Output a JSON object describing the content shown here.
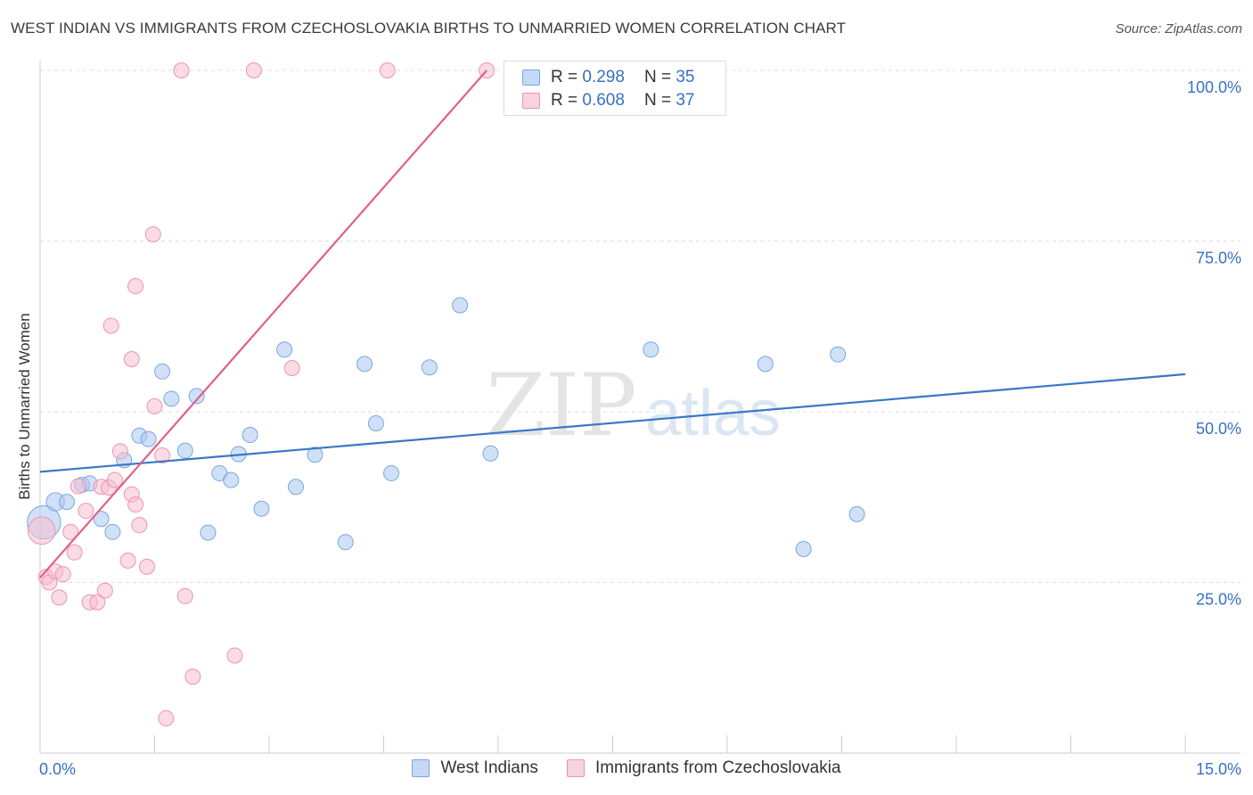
{
  "header": {
    "title": "WEST INDIAN VS IMMIGRANTS FROM CZECHOSLOVAKIA BIRTHS TO UNMARRIED WOMEN CORRELATION CHART",
    "source": "Source: ZipAtlas.com"
  },
  "watermark": {
    "zip": "ZIP",
    "atlas": "atlas"
  },
  "legend": {
    "rows": [
      {
        "r_label": "R =",
        "r_value": "0.298",
        "n_label": "N =",
        "n_value": "35"
      },
      {
        "r_label": "R =",
        "r_value": "0.608",
        "n_label": "N =",
        "n_value": "37"
      }
    ]
  },
  "colors": {
    "blue_fill": "#a9c8f0",
    "blue_stroke": "#7aa6e0",
    "blue_line": "#3a77c8",
    "pink_fill": "#f7bfd0",
    "pink_stroke": "#ec93b0",
    "pink_line": "#e0608a",
    "tick_label": "#3670c4",
    "grid": "#dddddd"
  },
  "chart_data": {
    "type": "scatter",
    "title": "WEST INDIAN VS IMMIGRANTS FROM CZECHOSLOVAKIA BIRTHS TO UNMARRIED WOMEN CORRELATION CHART",
    "xlabel": "",
    "ylabel": "Births to Unmarried Women",
    "xlim": [
      0,
      15
    ],
    "ylim": [
      0,
      100
    ],
    "x_tick_labels": [
      {
        "value": 0,
        "label": "0.0%"
      },
      {
        "value": 15,
        "label": "15.0%"
      }
    ],
    "y_tick_labels": [
      {
        "value": 25,
        "label": "25.0%"
      },
      {
        "value": 50,
        "label": "50.0%"
      },
      {
        "value": 75,
        "label": "75.0%"
      },
      {
        "value": 100,
        "label": "100.0%"
      }
    ],
    "grid": true,
    "legend_position": "top-center",
    "series": [
      {
        "name": "West Indians",
        "color": "#a9c8f0",
        "r": 0.298,
        "n": 35,
        "trend": {
          "x": [
            0,
            15
          ],
          "y": [
            41.2,
            55.5
          ]
        },
        "points": [
          {
            "x": 0.05,
            "y": 33.8,
            "s": 2.2
          },
          {
            "x": 0.2,
            "y": 36.8,
            "s": 1.2
          },
          {
            "x": 0.35,
            "y": 36.8,
            "s": 1.0
          },
          {
            "x": 0.55,
            "y": 39.3,
            "s": 1
          },
          {
            "x": 0.65,
            "y": 39.5,
            "s": 1
          },
          {
            "x": 0.8,
            "y": 34.3,
            "s": 1
          },
          {
            "x": 0.95,
            "y": 32.4,
            "s": 1
          },
          {
            "x": 1.1,
            "y": 42.9,
            "s": 1
          },
          {
            "x": 1.3,
            "y": 46.5,
            "s": 1
          },
          {
            "x": 1.42,
            "y": 46.0,
            "s": 1
          },
          {
            "x": 1.6,
            "y": 55.9,
            "s": 1
          },
          {
            "x": 1.72,
            "y": 51.9,
            "s": 1
          },
          {
            "x": 1.9,
            "y": 44.3,
            "s": 1
          },
          {
            "x": 2.05,
            "y": 52.3,
            "s": 1
          },
          {
            "x": 2.2,
            "y": 32.3,
            "s": 1
          },
          {
            "x": 2.35,
            "y": 41.0,
            "s": 1
          },
          {
            "x": 2.5,
            "y": 40.0,
            "s": 1
          },
          {
            "x": 2.6,
            "y": 43.8,
            "s": 1
          },
          {
            "x": 2.75,
            "y": 46.6,
            "s": 1
          },
          {
            "x": 2.9,
            "y": 35.8,
            "s": 1
          },
          {
            "x": 3.2,
            "y": 59.1,
            "s": 1
          },
          {
            "x": 3.35,
            "y": 39.0,
            "s": 1
          },
          {
            "x": 3.6,
            "y": 43.7,
            "s": 1
          },
          {
            "x": 4.0,
            "y": 30.9,
            "s": 1
          },
          {
            "x": 4.25,
            "y": 57.0,
            "s": 1
          },
          {
            "x": 4.4,
            "y": 48.3,
            "s": 1
          },
          {
            "x": 4.6,
            "y": 41.0,
            "s": 1
          },
          {
            "x": 5.1,
            "y": 56.5,
            "s": 1
          },
          {
            "x": 5.5,
            "y": 65.6,
            "s": 1
          },
          {
            "x": 5.9,
            "y": 43.9,
            "s": 1
          },
          {
            "x": 8.0,
            "y": 59.1,
            "s": 1
          },
          {
            "x": 9.5,
            "y": 57.0,
            "s": 1
          },
          {
            "x": 10.0,
            "y": 29.9,
            "s": 1
          },
          {
            "x": 10.45,
            "y": 58.4,
            "s": 1
          },
          {
            "x": 10.7,
            "y": 35.0,
            "s": 1
          }
        ]
      },
      {
        "name": "Immigrants from Czechoslovakia",
        "color": "#f7bfd0",
        "r": 0.608,
        "n": 37,
        "trend": {
          "x": [
            0,
            5.85
          ],
          "y": [
            25.7,
            100
          ]
        },
        "points": [
          {
            "x": 0.02,
            "y": 32.6,
            "s": 1.8
          },
          {
            "x": 0.08,
            "y": 25.8,
            "s": 1
          },
          {
            "x": 0.12,
            "y": 25.0,
            "s": 1
          },
          {
            "x": 0.2,
            "y": 26.6,
            "s": 1
          },
          {
            "x": 0.25,
            "y": 22.8,
            "s": 1
          },
          {
            "x": 0.3,
            "y": 26.2,
            "s": 1
          },
          {
            "x": 0.4,
            "y": 32.4,
            "s": 1
          },
          {
            "x": 0.45,
            "y": 29.4,
            "s": 1
          },
          {
            "x": 0.5,
            "y": 39.1,
            "s": 1
          },
          {
            "x": 0.6,
            "y": 35.5,
            "s": 1
          },
          {
            "x": 0.65,
            "y": 22.1,
            "s": 1
          },
          {
            "x": 0.75,
            "y": 22.1,
            "s": 1
          },
          {
            "x": 0.8,
            "y": 39.0,
            "s": 1
          },
          {
            "x": 0.85,
            "y": 23.8,
            "s": 1
          },
          {
            "x": 0.9,
            "y": 38.9,
            "s": 1
          },
          {
            "x": 0.98,
            "y": 40.0,
            "s": 1
          },
          {
            "x": 1.05,
            "y": 44.2,
            "s": 1
          },
          {
            "x": 1.15,
            "y": 28.2,
            "s": 1
          },
          {
            "x": 1.3,
            "y": 33.4,
            "s": 1
          },
          {
            "x": 1.4,
            "y": 27.3,
            "s": 1
          },
          {
            "x": 1.5,
            "y": 50.8,
            "s": 1
          },
          {
            "x": 1.6,
            "y": 43.6,
            "s": 1
          },
          {
            "x": 1.2,
            "y": 37.9,
            "s": 1
          },
          {
            "x": 1.25,
            "y": 36.4,
            "s": 1
          },
          {
            "x": 0.93,
            "y": 62.6,
            "s": 1
          },
          {
            "x": 1.2,
            "y": 57.7,
            "s": 1
          },
          {
            "x": 1.25,
            "y": 68.4,
            "s": 1
          },
          {
            "x": 1.48,
            "y": 76.0,
            "s": 1
          },
          {
            "x": 1.9,
            "y": 23.0,
            "s": 1
          },
          {
            "x": 2.0,
            "y": 11.2,
            "s": 1
          },
          {
            "x": 1.65,
            "y": 5.1,
            "s": 1
          },
          {
            "x": 2.55,
            "y": 14.3,
            "s": 1
          },
          {
            "x": 1.85,
            "y": 100,
            "s": 1
          },
          {
            "x": 2.8,
            "y": 100,
            "s": 1
          },
          {
            "x": 3.3,
            "y": 56.4,
            "s": 1
          },
          {
            "x": 4.55,
            "y": 100,
            "s": 1
          },
          {
            "x": 5.85,
            "y": 100,
            "s": 1
          }
        ]
      }
    ]
  }
}
